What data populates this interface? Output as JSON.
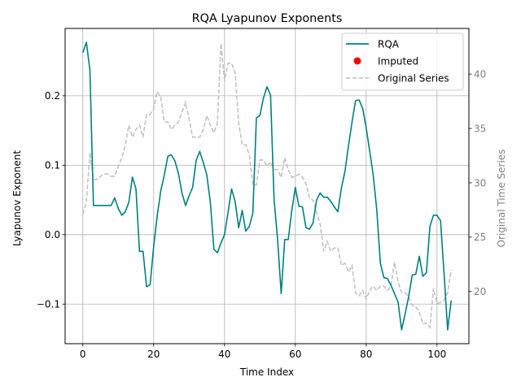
{
  "chart_data": {
    "type": "line",
    "title": "RQA Lyapunov Exponents",
    "xlabel": "Time Index",
    "ylabel": "Lyapunov Exponent",
    "y2label": "Original Time Series",
    "xlim": [
      -5,
      109
    ],
    "ylim": [
      -0.157,
      0.297
    ],
    "y2lim": [
      15.2,
      44.2
    ],
    "xticks": [
      0,
      20,
      40,
      60,
      80,
      100
    ],
    "yticks": [
      -0.1,
      0.0,
      0.1,
      0.2
    ],
    "y2ticks": [
      20,
      25,
      30,
      35,
      40
    ],
    "xtick_labels": [
      "0",
      "20",
      "40",
      "60",
      "80",
      "100"
    ],
    "ytick_labels": [
      "−0.1",
      "0.0",
      "0.1",
      "0.2"
    ],
    "y2tick_labels": [
      "20",
      "25",
      "30",
      "35",
      "40"
    ],
    "grid": true,
    "legend": "top-right",
    "colors": {
      "rqa": "#008080",
      "imputed": "#ff0000",
      "original": "#bfbfbf",
      "y2axis": "#808080"
    },
    "legend_entries": [
      {
        "name": "RQA",
        "marker": "line"
      },
      {
        "name": "Imputed",
        "marker": "dot"
      },
      {
        "name": "Original Series",
        "marker": "dashed"
      }
    ],
    "series": [
      {
        "name": "RQA",
        "axis": "left",
        "values": [
          0.262,
          0.277,
          0.237,
          0.042,
          0.042,
          0.042,
          0.042,
          0.042,
          0.042,
          0.053,
          0.038,
          0.028,
          0.033,
          0.047,
          0.083,
          0.066,
          -0.024,
          -0.024,
          -0.075,
          -0.072,
          -0.017,
          0.027,
          0.063,
          0.086,
          0.113,
          0.115,
          0.106,
          0.088,
          0.06,
          0.042,
          0.056,
          0.068,
          0.107,
          0.12,
          0.104,
          0.086,
          0.047,
          -0.021,
          -0.026,
          -0.012,
          0.0,
          0.032,
          0.066,
          0.048,
          0.01,
          0.035,
          0.005,
          0.012,
          0.031,
          0.168,
          0.172,
          0.197,
          0.213,
          0.201,
          0.05,
          -0.007,
          -0.085,
          -0.007,
          -0.007,
          0.035,
          0.068,
          0.041,
          0.04,
          0.01,
          0.008,
          0.017,
          0.05,
          0.06,
          0.054,
          0.054,
          0.048,
          0.04,
          0.033,
          0.067,
          0.091,
          0.128,
          0.162,
          0.193,
          0.194,
          0.182,
          0.154,
          0.12,
          0.085,
          0.035,
          -0.041,
          -0.062,
          -0.063,
          -0.073,
          -0.085,
          -0.097,
          -0.137,
          -0.114,
          -0.089,
          -0.058,
          -0.057,
          -0.031,
          -0.06,
          -0.055,
          0.012,
          0.028,
          0.028,
          0.02,
          -0.057,
          -0.137,
          -0.095
        ]
      },
      {
        "name": "Imputed",
        "axis": "left",
        "values": []
      },
      {
        "name": "Original Series",
        "axis": "right",
        "values": [
          27.1,
          28.2,
          32.8,
          30.3,
          30.3,
          30.6,
          30.8,
          30.8,
          30.6,
          30.6,
          31.5,
          32.3,
          33.5,
          35.3,
          34.2,
          34.9,
          35.3,
          34.2,
          36.3,
          36.3,
          36.8,
          38.4,
          37.9,
          35.6,
          35.6,
          34.9,
          35.3,
          35.6,
          36.5,
          37.4,
          35.9,
          34.2,
          34.2,
          34.2,
          34.9,
          36.2,
          35.3,
          34.6,
          35.5,
          42.8,
          39.4,
          41.0,
          41.0,
          40.1,
          35.5,
          33.5,
          33.5,
          32.6,
          29.8,
          29.8,
          32.1,
          32.1,
          31.5,
          31.9,
          31.2,
          31.2,
          30.5,
          32.3,
          31.2,
          30.5,
          30.6,
          30.8,
          30.5,
          29.9,
          28.6,
          28.4,
          27.3,
          26.2,
          23.7,
          24.6,
          23.7,
          24.0,
          24.0,
          22.4,
          22.6,
          21.8,
          22.4,
          19.9,
          19.6,
          20.1,
          19.3,
          20.1,
          20.5,
          20.1,
          20.5,
          20.5,
          20.1,
          20.5,
          22.7,
          20.9,
          19.9,
          19.9,
          19.5,
          18.7,
          18.6,
          18.1,
          17.0,
          17.1,
          16.7,
          20.3,
          18.9,
          19.0,
          19.2,
          19.9,
          22.0
        ]
      }
    ]
  }
}
